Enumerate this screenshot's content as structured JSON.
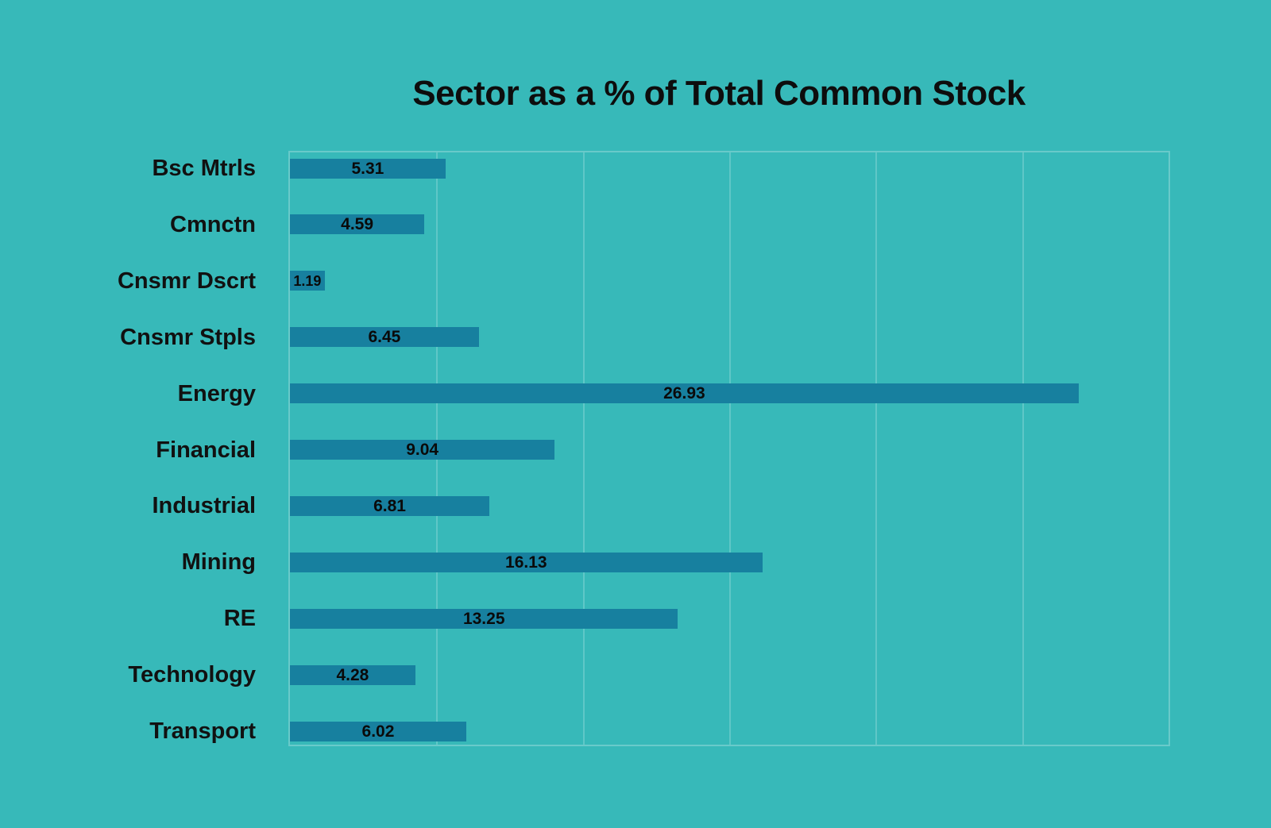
{
  "chart_data": {
    "type": "bar",
    "orientation": "horizontal",
    "title": "Sector as a % of Total Common Stock",
    "categories": [
      "Bsc Mtrls",
      "Cmnctn",
      "Cnsmr Dscrt",
      "Cnsmr Stpls",
      "Energy",
      "Financial",
      "Industrial",
      "Mining",
      "RE",
      "Technology",
      "Transport"
    ],
    "values": [
      5.31,
      4.59,
      1.19,
      6.45,
      26.93,
      9.04,
      6.81,
      16.13,
      13.25,
      4.28,
      6.02
    ],
    "value_labels": [
      "5.31",
      "4.59",
      "1.19",
      "6.45",
      "26.93",
      "9.04",
      "6.81",
      "16.13",
      "13.25",
      "4.28",
      "6.02"
    ],
    "xlabel": "",
    "ylabel": "",
    "xlim": [
      0,
      30
    ],
    "gridline_step": 5,
    "grid": true,
    "legend": null,
    "value_label_position": "inside-center",
    "colors": {
      "background": "#37b9b9",
      "bar": "#17809f",
      "gridline": "#5cc6c6",
      "text": "#0d0d0d"
    }
  }
}
